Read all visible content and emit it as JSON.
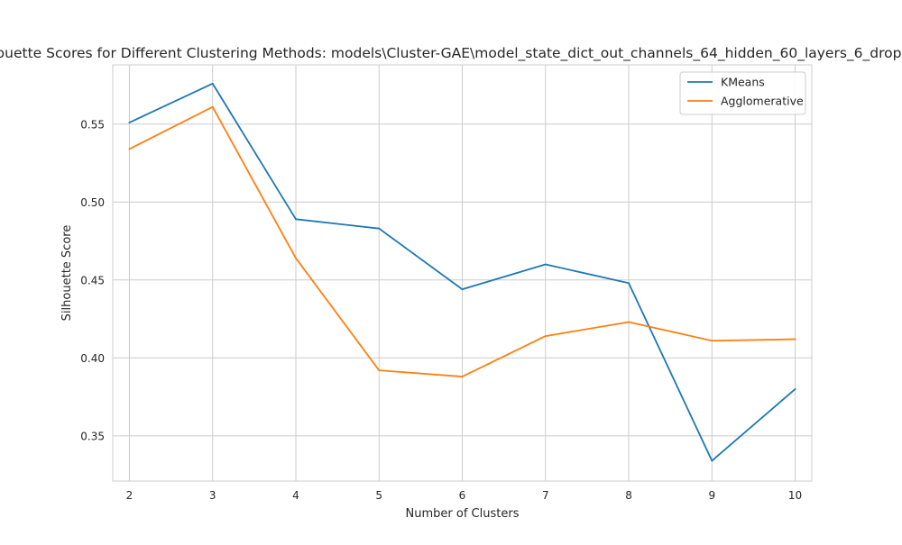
{
  "chart_data": {
    "type": "line",
    "title": "Silhouette Scores for Different Clustering Methods: models\\Cluster-GAE\\model_state_dict_out_channels_64_hidden_60_layers_6_dropout_",
    "xlabel": "Number of Clusters",
    "ylabel": "Silhouette Score",
    "x": [
      2,
      3,
      4,
      5,
      6,
      7,
      8,
      9,
      10
    ],
    "xticks": [
      "2",
      "3",
      "4",
      "5",
      "6",
      "7",
      "8",
      "9",
      "10"
    ],
    "yticks": [
      "0.35",
      "0.40",
      "0.45",
      "0.50",
      "0.55"
    ],
    "ytick_values": [
      0.35,
      0.4,
      0.45,
      0.5,
      0.55
    ],
    "xlim": [
      1.8,
      10.2
    ],
    "ylim": [
      0.321,
      0.588
    ],
    "grid": true,
    "legend_position": "top-right",
    "series": [
      {
        "name": "KMeans",
        "color": "#1f77b4",
        "values": [
          0.551,
          0.576,
          0.489,
          0.483,
          0.444,
          0.46,
          0.448,
          0.334,
          0.38
        ]
      },
      {
        "name": "Agglomerative",
        "color": "#ff7f0e",
        "values": [
          0.534,
          0.561,
          0.464,
          0.392,
          0.388,
          0.414,
          0.423,
          0.411,
          0.412
        ]
      }
    ]
  }
}
